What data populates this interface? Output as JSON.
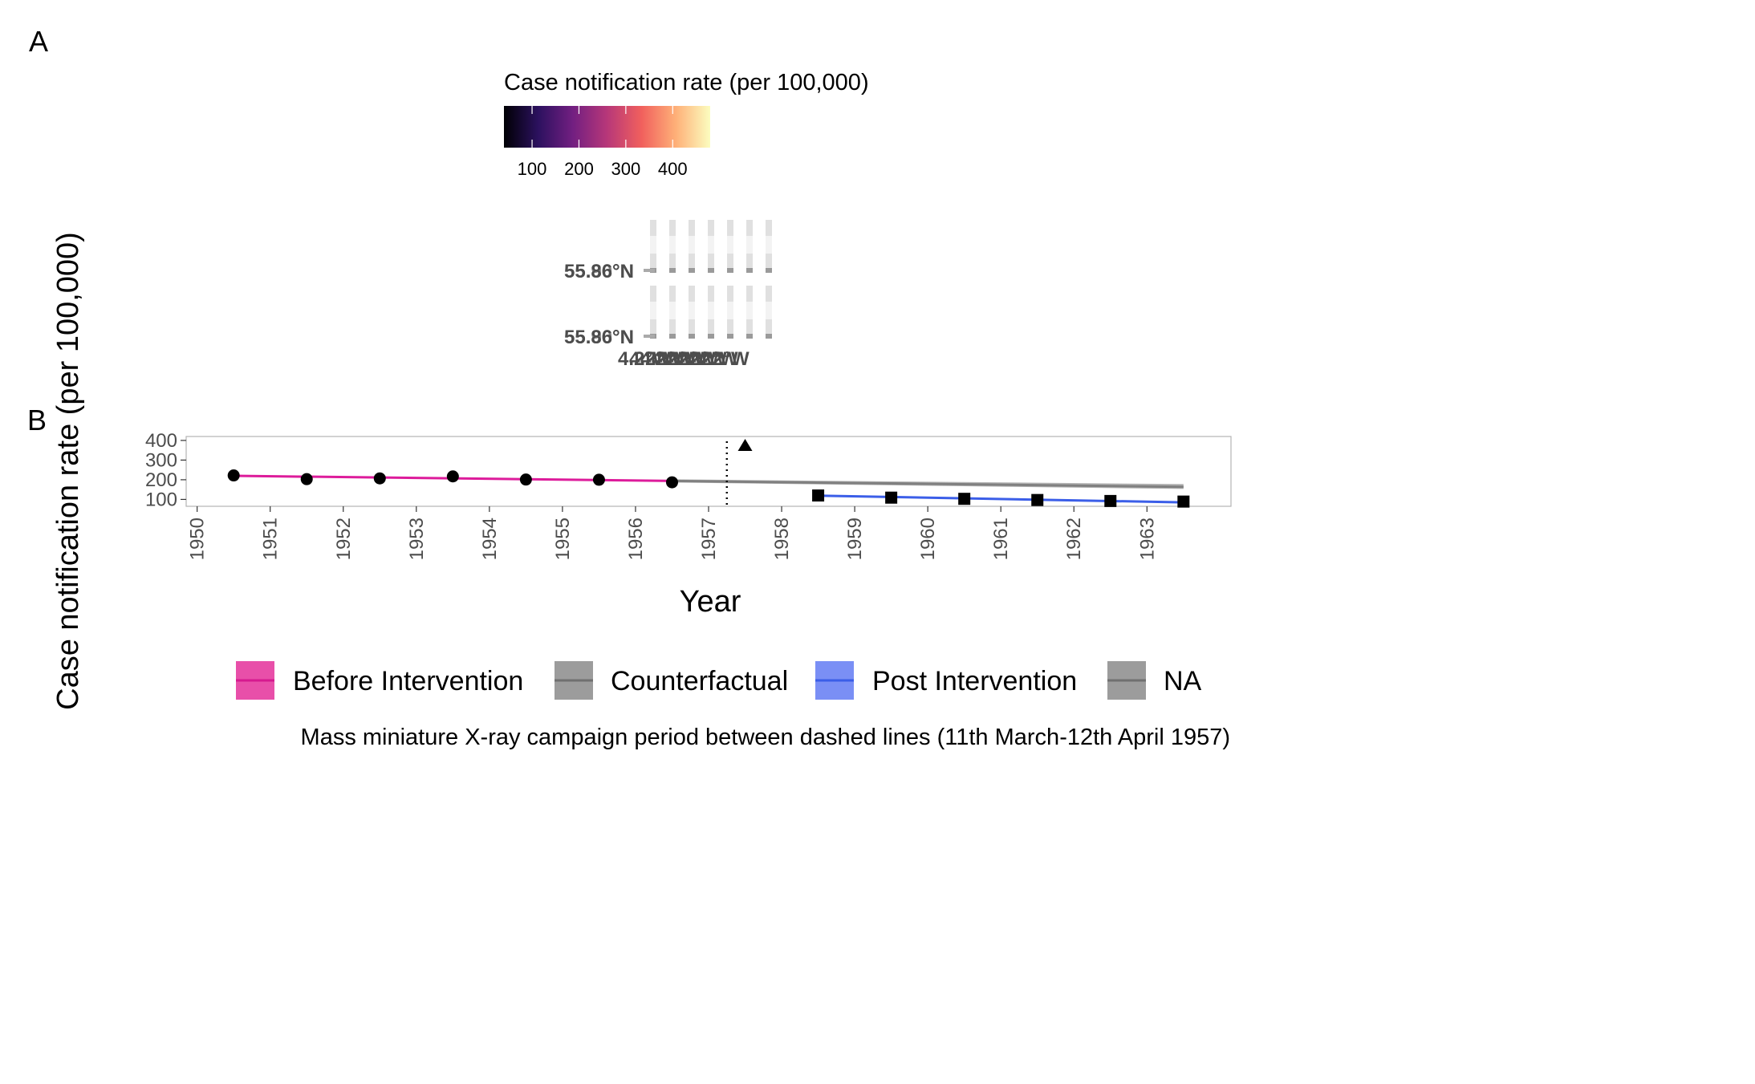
{
  "panel_labels": {
    "a": "A",
    "b": "B"
  },
  "colorbar": {
    "title": "Case notification rate (per 100,000)",
    "ticks": [
      "100",
      "200",
      "300",
      "400"
    ],
    "min": 40,
    "max": 480,
    "palette": [
      "#000004",
      "#2c115f",
      "#721f81",
      "#b73779",
      "#f1605d",
      "#feb078",
      "#fcfdbf"
    ]
  },
  "map_panel": {
    "lat_labels": [
      "55.86°N",
      "55.90°N",
      "55.86°N",
      "55.90°N"
    ],
    "lon_label": "4.2°W"
  },
  "chart_data": {
    "type": "line",
    "xlabel": "Year",
    "ylabel": "Case notification rate (per 100,000)",
    "xlim": [
      1949.85,
      1964.15
    ],
    "ylim": [
      65,
      420
    ],
    "x_ticks": [
      "1950",
      "1951",
      "1952",
      "1953",
      "1954",
      "1955",
      "1956",
      "1957",
      "1958",
      "1959",
      "1960",
      "1961",
      "1962",
      "1963"
    ],
    "y_ticks": [
      "100",
      "200",
      "300",
      "400"
    ],
    "grid": false,
    "campaign_line_x": 1957.25,
    "intervention_marker": {
      "x": 1957.5,
      "y": 375,
      "shape": "triangle"
    },
    "series": [
      {
        "name": "Before Intervention",
        "color": "#dd1c9b",
        "marker": "circle",
        "x": [
          1950.5,
          1951.5,
          1952.5,
          1953.5,
          1954.5,
          1955.5,
          1956.5
        ],
        "y": [
          222,
          203,
          207,
          217,
          201,
          200,
          187
        ],
        "fit": [
          [
            1950.5,
            220
          ],
          [
            1956.5,
            194
          ]
        ]
      },
      {
        "name": "Counterfactual",
        "color": "#808080",
        "fit": [
          [
            1956.5,
            194
          ],
          [
            1963.5,
            164
          ]
        ],
        "band": [
          [
            1956.5,
            186,
            202
          ],
          [
            1963.5,
            153,
            178
          ]
        ]
      },
      {
        "name": "Post Intervention",
        "color": "#3b5ee8",
        "marker": "square",
        "x": [
          1958.5,
          1959.5,
          1960.5,
          1961.5,
          1962.5,
          1963.5
        ],
        "y": [
          120,
          109,
          103,
          97,
          92,
          89
        ],
        "fit": [
          [
            1958.5,
            119
          ],
          [
            1963.5,
            85
          ]
        ]
      }
    ]
  },
  "legend": {
    "items": [
      {
        "label": "Before Intervention",
        "fill": "#e84fa9",
        "line": "#d61a8f"
      },
      {
        "label": "Counterfactual",
        "fill": "#9c9c9c",
        "line": "#707070"
      },
      {
        "label": "Post Intervention",
        "fill": "#7a8ff5",
        "line": "#3b5ee8"
      },
      {
        "label": "NA",
        "fill": "#9c9c9c",
        "line": "#707070"
      }
    ]
  },
  "caption": "Mass miniature X-ray campaign period between dashed lines (11th March-12th April 1957)"
}
